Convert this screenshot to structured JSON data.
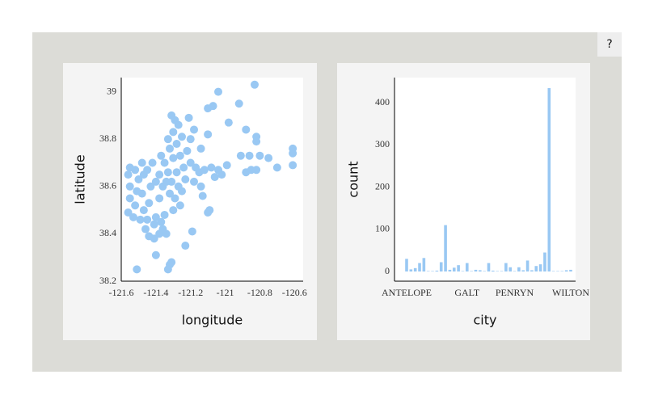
{
  "help_button": "?",
  "chart_data": [
    {
      "type": "scatter",
      "x_label": "longitude",
      "y_label": "latitude",
      "color": "#99c8f3",
      "x": [
        -121.04,
        -120.83,
        -120.92,
        -121.07,
        -121.1,
        -120.88,
        -120.82,
        -120.82,
        -120.91,
        -120.86,
        -120.8,
        -120.75,
        -120.61,
        -120.61,
        -120.61,
        -120.7,
        -120.88,
        -120.85,
        -120.82,
        -120.98,
        -121.1,
        -121.14,
        -121.08,
        -121.04,
        -120.99,
        -121.02,
        -121.06,
        -121.51,
        -121.4,
        -121.32,
        -121.31,
        -121.33,
        -121.23,
        -121.19,
        -121.09,
        -121.1,
        -121.13,
        -121.18,
        -121.14,
        -121.55,
        -121.56,
        -121.55,
        -121.55,
        -121.56,
        -121.53,
        -121.52,
        -121.51,
        -121.5,
        -121.52,
        -121.48,
        -121.47,
        -121.48,
        -121.47,
        -121.45,
        -121.49,
        -121.44,
        -121.43,
        -121.45,
        -121.46,
        -121.44,
        -121.41,
        -121.38,
        -121.36,
        -121.37,
        -121.4,
        -121.35,
        -121.41,
        -121.34,
        -121.38,
        -121.36,
        -121.38,
        -121.35,
        -121.33,
        -121.31,
        -121.32,
        -121.29,
        -121.27,
        -121.28,
        -121.3,
        -121.32,
        -121.33,
        -121.3,
        -121.28,
        -121.26,
        -121.24,
        -121.23,
        -121.25,
        -121.29,
        -121.31,
        -121.27,
        -121.25,
        -121.22,
        -121.2,
        -121.17,
        -121.15,
        -121.12,
        -121.2,
        -121.18,
        -121.21,
        -121.34,
        -121.4,
        -121.42,
        -121.37,
        -121.26,
        -121.3
      ],
      "y": [
        39.0,
        39.03,
        38.95,
        38.94,
        38.93,
        38.84,
        38.81,
        38.79,
        38.73,
        38.73,
        38.73,
        38.72,
        38.76,
        38.74,
        38.69,
        38.68,
        38.66,
        38.67,
        38.67,
        38.87,
        38.82,
        38.76,
        38.68,
        38.67,
        38.69,
        38.65,
        38.64,
        38.25,
        38.31,
        38.27,
        38.28,
        38.25,
        38.35,
        38.41,
        38.5,
        38.49,
        38.56,
        38.62,
        38.6,
        38.68,
        38.65,
        38.6,
        38.55,
        38.49,
        38.47,
        38.52,
        38.58,
        38.63,
        38.67,
        38.7,
        38.65,
        38.57,
        38.5,
        38.46,
        38.46,
        38.53,
        38.6,
        38.67,
        38.42,
        38.39,
        38.38,
        38.4,
        38.42,
        38.45,
        38.47,
        38.48,
        38.44,
        38.4,
        38.55,
        38.6,
        38.65,
        38.7,
        38.66,
        38.62,
        38.57,
        38.55,
        38.6,
        38.66,
        38.72,
        38.76,
        38.8,
        38.83,
        38.78,
        38.73,
        38.68,
        38.63,
        38.58,
        38.88,
        38.9,
        38.86,
        38.81,
        38.75,
        38.7,
        38.68,
        38.66,
        38.67,
        38.8,
        38.84,
        38.89,
        38.62,
        38.62,
        38.7,
        38.73,
        38.52,
        38.5
      ],
      "xlim": [
        -121.6,
        -120.55
      ],
      "xticks": [
        -121.6,
        -121.4,
        -121.2,
        -121,
        -120.8,
        -120.6
      ],
      "ylim": [
        38.2,
        39.06
      ],
      "yticks": [
        38.2,
        38.4,
        38.6,
        38.8,
        39
      ]
    },
    {
      "type": "bar",
      "x_label": "city",
      "y_label": "count",
      "color": "#99c8f3",
      "categories": [
        "ANTELOPE",
        null,
        null,
        null,
        null,
        null,
        null,
        null,
        null,
        null,
        null,
        null,
        null,
        null,
        "GALT",
        null,
        null,
        null,
        null,
        null,
        null,
        null,
        null,
        null,
        null,
        "PENRYN",
        null,
        null,
        null,
        null,
        null,
        null,
        null,
        null,
        null,
        null,
        null,
        null,
        "WILTON"
      ],
      "values": [
        30,
        5,
        8,
        20,
        32,
        1,
        1,
        2,
        22,
        110,
        4,
        9,
        15,
        1,
        20,
        1,
        4,
        3,
        1,
        20,
        2,
        1,
        1,
        20,
        10,
        1,
        10,
        3,
        26,
        3,
        13,
        17,
        45,
        435,
        1,
        1,
        1,
        3,
        4
      ],
      "ylim": [
        -23,
        460
      ],
      "yticks": [
        0,
        100,
        200,
        300,
        400
      ]
    }
  ]
}
